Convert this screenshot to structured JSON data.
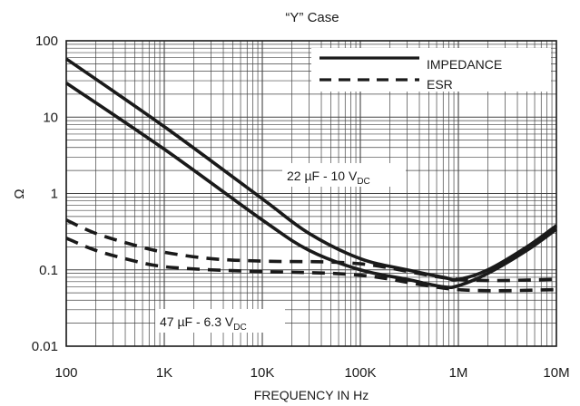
{
  "chart_data": {
    "type": "line",
    "title": "“Y” Case",
    "xlabel": "FREQUENCY IN Hz",
    "ylabel": "Ω",
    "x_scale": "log",
    "y_scale": "log",
    "xlim": [
      100,
      10000000
    ],
    "ylim": [
      0.01,
      100
    ],
    "x_ticks": [
      100,
      1000,
      10000,
      100000,
      1000000,
      10000000
    ],
    "x_tick_labels": [
      "100",
      "1K",
      "10K",
      "100K",
      "1M",
      "10M"
    ],
    "y_ticks": [
      0.01,
      0.1,
      1,
      10,
      100
    ],
    "y_tick_labels": [
      "0.01",
      "0.1",
      "1",
      "10",
      "100"
    ],
    "grid": true,
    "legend": {
      "position": "top-right",
      "entries": [
        {
          "label": "IMPEDANCE",
          "style": "solid"
        },
        {
          "label": "ESR",
          "style": "dashed"
        }
      ]
    },
    "annotations": [
      {
        "id": "ann1",
        "base": "22 µF - 10 V",
        "sub": "DC"
      },
      {
        "id": "ann2",
        "base": "47 µF - 6.3 V",
        "sub": "DC"
      }
    ],
    "series": [
      {
        "style": "solid",
        "x": [
          100,
          1000,
          10000,
          30000,
          100000,
          300000,
          700000,
          1000000,
          2000000,
          5000000,
          10000000
        ],
        "y": [
          58,
          7.5,
          0.85,
          0.3,
          0.14,
          0.1,
          0.08,
          0.075,
          0.1,
          0.2,
          0.38
        ]
      },
      {
        "style": "solid",
        "x": [
          100,
          1000,
          10000,
          30000,
          100000,
          300000,
          700000,
          1000000,
          2000000,
          5000000,
          10000000
        ],
        "y": [
          28,
          3.8,
          0.45,
          0.18,
          0.1,
          0.075,
          0.06,
          0.062,
          0.09,
          0.18,
          0.34
        ]
      },
      {
        "style": "dashed",
        "x": [
          100,
          200,
          500,
          1000,
          3000,
          10000,
          100000,
          1000000,
          10000000
        ],
        "y": [
          0.45,
          0.3,
          0.21,
          0.17,
          0.14,
          0.13,
          0.12,
          0.075,
          0.075
        ]
      },
      {
        "style": "dashed",
        "x": [
          100,
          200,
          500,
          1000,
          3000,
          10000,
          100000,
          1000000,
          10000000
        ],
        "y": [
          0.26,
          0.18,
          0.13,
          0.11,
          0.1,
          0.095,
          0.085,
          0.055,
          0.055
        ]
      }
    ]
  }
}
